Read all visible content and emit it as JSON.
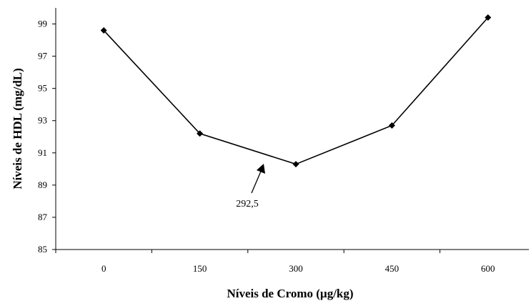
{
  "chart_data": {
    "type": "line",
    "title": "",
    "xlabel": "Níveis de Cromo (µg/kg)",
    "ylabel": "Níveis de HDL (mg/dL)",
    "categories": [
      "0",
      "150",
      "300",
      "450",
      "600"
    ],
    "x": [
      0,
      150,
      300,
      450,
      600
    ],
    "series": [
      {
        "values": [
          98.6,
          92.2,
          90.3,
          92.7,
          99.4
        ]
      }
    ],
    "ylim": [
      85,
      100
    ],
    "yticks": [
      "85",
      "87",
      "89",
      "91",
      "93",
      "95",
      "97",
      "99"
    ],
    "grid": false,
    "legend": "none",
    "annotations": [
      {
        "text": "292,5",
        "x": 292.5
      }
    ],
    "colors": {
      "line": "#000000",
      "marker": "#000000",
      "axis": "#000000"
    }
  }
}
